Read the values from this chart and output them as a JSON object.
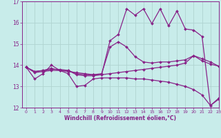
{
  "xlabel": "Windchill (Refroidissement éolien,°C)",
  "xlim": [
    -0.5,
    23
  ],
  "ylim": [
    12,
    17
  ],
  "yticks": [
    12,
    13,
    14,
    15,
    16,
    17
  ],
  "xticks": [
    0,
    1,
    2,
    3,
    4,
    5,
    6,
    7,
    8,
    9,
    10,
    11,
    12,
    13,
    14,
    15,
    16,
    17,
    18,
    19,
    20,
    21,
    22,
    23
  ],
  "bg_color": "#c8ecea",
  "line_color": "#882288",
  "grid_color": "#b0d4d0",
  "lines": [
    {
      "x": [
        0,
        1,
        2,
        3,
        4,
        5,
        6,
        7,
        8,
        9,
        10,
        11,
        12,
        13,
        14,
        15,
        16,
        17,
        18,
        19,
        20,
        21,
        22,
        23
      ],
      "y": [
        13.9,
        13.35,
        13.6,
        14.0,
        13.75,
        13.6,
        13.0,
        13.05,
        13.35,
        13.4,
        13.4,
        13.4,
        13.4,
        13.35,
        13.35,
        13.3,
        13.25,
        13.2,
        13.1,
        13.0,
        12.85,
        12.6,
        12.1,
        12.4
      ]
    },
    {
      "x": [
        0,
        1,
        2,
        3,
        4,
        5,
        6,
        7,
        8,
        9,
        10,
        11,
        12,
        13,
        14,
        15,
        16,
        17,
        18,
        19,
        20,
        21,
        22,
        23
      ],
      "y": [
        13.9,
        13.65,
        13.7,
        13.75,
        13.75,
        13.7,
        13.65,
        13.6,
        13.55,
        13.55,
        13.6,
        13.65,
        13.7,
        13.75,
        13.8,
        13.85,
        13.9,
        13.95,
        14.0,
        14.1,
        14.45,
        14.2,
        14.05,
        13.95
      ]
    },
    {
      "x": [
        0,
        1,
        2,
        3,
        4,
        5,
        6,
        7,
        8,
        9,
        10,
        11,
        12,
        13,
        14,
        15,
        16,
        17,
        18,
        19,
        20,
        21,
        22,
        23
      ],
      "y": [
        13.9,
        13.7,
        13.75,
        13.8,
        13.8,
        13.75,
        13.6,
        13.55,
        13.55,
        13.6,
        14.85,
        15.1,
        14.85,
        14.4,
        14.15,
        14.1,
        14.15,
        14.15,
        14.2,
        14.25,
        14.45,
        14.3,
        14.15,
        13.95
      ]
    },
    {
      "x": [
        0,
        1,
        2,
        3,
        4,
        5,
        6,
        7,
        8,
        9,
        10,
        11,
        12,
        13,
        14,
        15,
        16,
        17,
        18,
        19,
        20,
        21,
        22,
        23
      ],
      "y": [
        13.9,
        13.7,
        13.75,
        13.85,
        13.75,
        13.75,
        13.55,
        13.5,
        13.5,
        13.55,
        15.15,
        15.45,
        16.65,
        16.35,
        16.65,
        15.95,
        16.65,
        15.85,
        16.55,
        15.7,
        15.65,
        15.35,
        12.1,
        12.45
      ]
    }
  ]
}
